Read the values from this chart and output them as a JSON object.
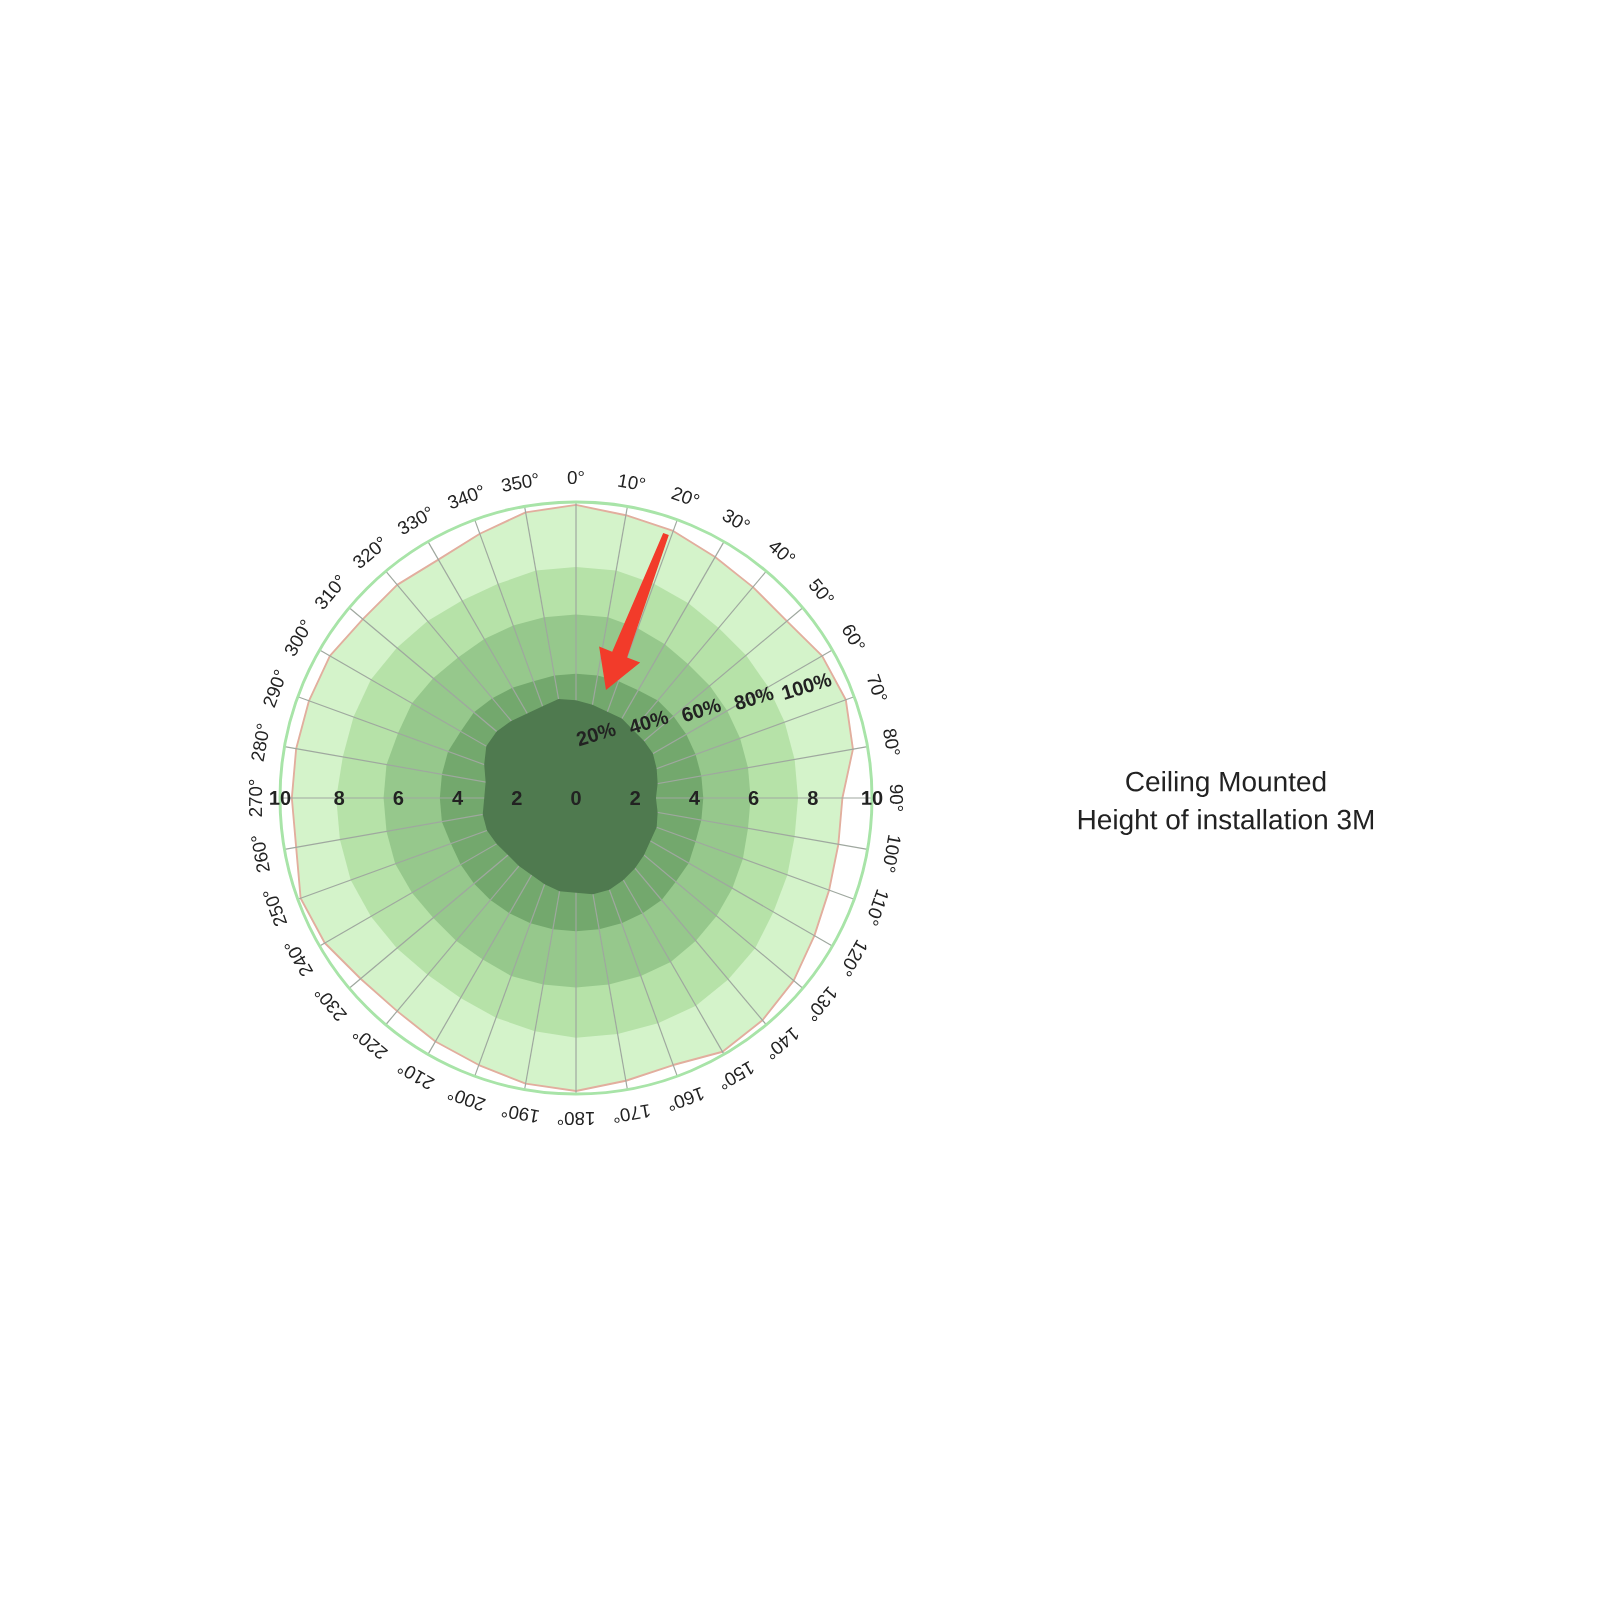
{
  "chart_data": {
    "type": "radar",
    "categories": [
      "0°",
      "10°",
      "20°",
      "30°",
      "40°",
      "50°",
      "60°",
      "70°",
      "80°",
      "90°",
      "100°",
      "110°",
      "120°",
      "130°",
      "140°",
      "150°",
      "160°",
      "170°",
      "180°",
      "190°",
      "200°",
      "210°",
      "220°",
      "230°",
      "240°",
      "250°",
      "260°",
      "270°",
      "280°",
      "290°",
      "300°",
      "310°",
      "320°",
      "330°",
      "340°",
      "350°"
    ],
    "series": [
      {
        "name": "20%",
        "color": "#4f7a4f",
        "values": [
          3.3,
          3.2,
          3.1,
          3.1,
          3.0,
          3.0,
          3.0,
          2.9,
          2.8,
          2.7,
          2.8,
          2.9,
          2.9,
          3.0,
          3.1,
          3.2,
          3.3,
          3.3,
          3.2,
          3.2,
          3.1,
          3.0,
          3.0,
          3.0,
          3.1,
          3.2,
          3.2,
          3.1,
          3.1,
          3.3,
          3.5,
          3.5,
          3.4,
          3.3,
          3.3,
          3.4
        ]
      },
      {
        "name": "40%",
        "color": "#73a86d",
        "values": [
          4.2,
          4.2,
          4.2,
          4.2,
          4.3,
          4.3,
          4.3,
          4.3,
          4.3,
          4.3,
          4.3,
          4.3,
          4.4,
          4.4,
          4.5,
          4.5,
          4.5,
          4.5,
          4.5,
          4.5,
          4.5,
          4.5,
          4.5,
          4.5,
          4.5,
          4.5,
          4.6,
          4.6,
          4.6,
          4.6,
          4.5,
          4.5,
          4.4,
          4.3,
          4.2,
          4.2
        ]
      },
      {
        "name": "60%",
        "color": "#96c88c",
        "values": [
          6.2,
          6.2,
          6.1,
          6.0,
          5.9,
          5.9,
          5.9,
          5.9,
          5.9,
          5.9,
          5.9,
          6.0,
          6.1,
          6.2,
          6.3,
          6.4,
          6.4,
          6.4,
          6.4,
          6.4,
          6.4,
          6.3,
          6.3,
          6.3,
          6.4,
          6.5,
          6.5,
          6.5,
          6.5,
          6.4,
          6.4,
          6.3,
          6.2,
          6.2,
          6.2,
          6.2
        ]
      },
      {
        "name": "80%",
        "color": "#b6e2a8",
        "values": [
          7.8,
          7.8,
          7.7,
          7.6,
          7.5,
          7.5,
          7.5,
          7.5,
          7.5,
          7.5,
          7.5,
          7.6,
          7.7,
          7.9,
          8.0,
          8.1,
          8.1,
          8.1,
          8.1,
          8.0,
          7.9,
          7.8,
          7.8,
          7.9,
          8.0,
          8.1,
          8.1,
          8.1,
          8.0,
          8.0,
          8.0,
          7.9,
          7.8,
          7.7,
          7.7,
          7.8
        ]
      },
      {
        "name": "100%",
        "color": "#d4f3ca",
        "values": [
          9.9,
          9.7,
          9.6,
          9.4,
          9.3,
          9.3,
          9.6,
          9.7,
          9.5,
          9.0,
          9.0,
          9.1,
          9.3,
          9.6,
          9.8,
          9.9,
          9.6,
          9.7,
          9.9,
          9.8,
          9.6,
          9.5,
          9.4,
          9.5,
          9.8,
          9.9,
          9.6,
          9.6,
          9.6,
          9.6,
          9.6,
          9.4,
          9.4,
          9.3,
          9.5,
          9.8
        ]
      }
    ],
    "ylim": [
      0,
      10
    ],
    "yticks": [
      10,
      8,
      6,
      4,
      2,
      0,
      2,
      4,
      6,
      8,
      10
    ],
    "grid": true,
    "annotations": [
      "Ceiling Mounted",
      "Height of installation 3M"
    ]
  }
}
